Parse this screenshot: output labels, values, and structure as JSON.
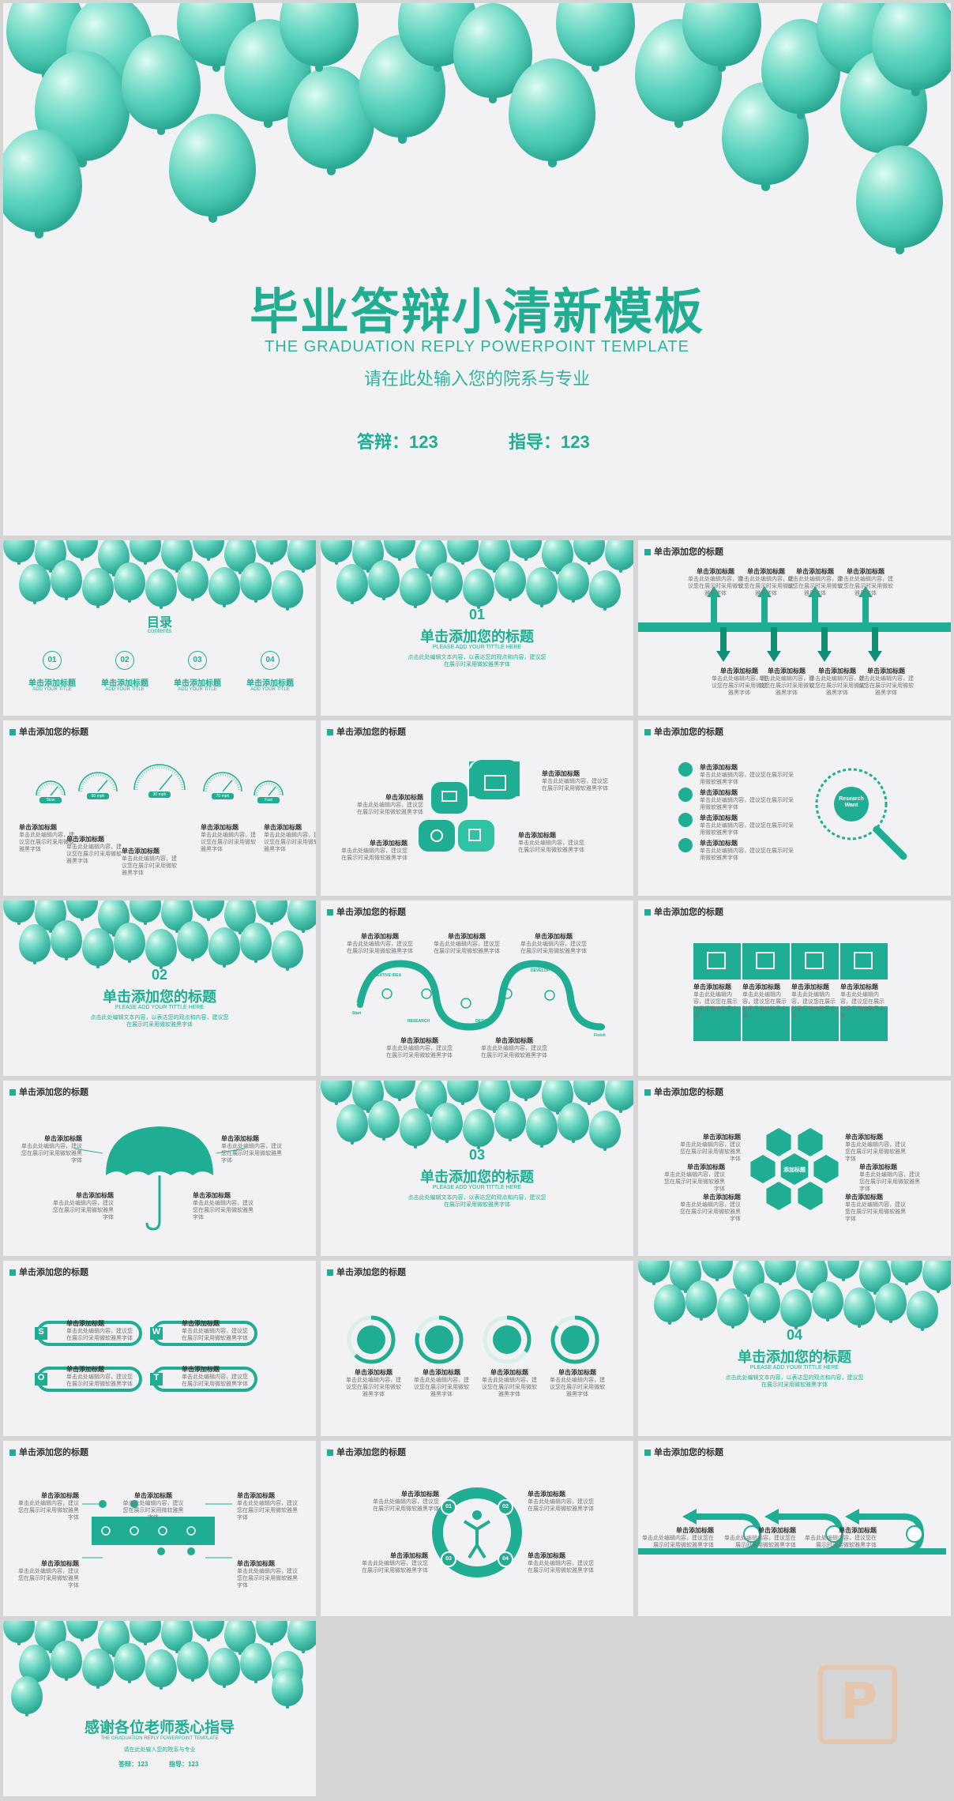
{
  "hero": {
    "title": "毕业答辩小清新模板",
    "subtitle_en": "THE GRADUATION REPLY POWERPOINT TEMPLATE",
    "subtitle_cn": "请在此处输入您的院系与专业",
    "defense_label": "答辩：123",
    "advisor_label": "指导：123"
  },
  "slide_header": "单击添加您的标题",
  "item_title": "单击添加标题",
  "item_text": "单击此处编辑内容，建议您在展示时采用微软雅黑字体",
  "toc": {
    "title": "目录",
    "subtitle": "contents",
    "items": [
      {
        "num": "01",
        "label": "单击添加标题",
        "sub": "ADD YOUR TITLE"
      },
      {
        "num": "02",
        "label": "单击添加标题",
        "sub": "ADD YOUR TITLE"
      },
      {
        "num": "03",
        "label": "单击添加标题",
        "sub": "ADD YOUR TITLE"
      },
      {
        "num": "04",
        "label": "单击添加标题",
        "sub": "ADD YOUR TITLE"
      }
    ]
  },
  "sections": [
    {
      "num": "01",
      "title": "单击添加您的标题",
      "sub": "PLEASE ADD YOUR TITTLE HERE",
      "desc": "点击此处编辑文本内容，以表达您的观点和内容，建议您在展示时采用微软雅黑字体"
    },
    {
      "num": "02",
      "title": "单击添加您的标题",
      "sub": "PLEASE ADD YOUR TITTLE HERE",
      "desc": "点击此处编辑文本内容，以表达您的观点和内容，建议您在展示时采用微软雅黑字体"
    },
    {
      "num": "03",
      "title": "单击添加您的标题",
      "sub": "PLEASE ADD YOUR TITTLE HERE",
      "desc": "点击此处编辑文本内容，以表达您的观点和内容，建议您在展示时采用微软雅黑字体"
    },
    {
      "num": "04",
      "title": "单击添加您的标题",
      "sub": "PLEASE ADD YOUR TITTLE HERE",
      "desc": "点击此处编辑文本内容，以表达您的观点和内容，建议您在展示时采用微软雅黑字体"
    }
  ],
  "gauges": [
    "Slow",
    "60 mph",
    "30 mph",
    "70 mph",
    "Fast"
  ],
  "search_word": "Research Want",
  "wave_labels": [
    "CREATIVE IDEA",
    "RESEARCH",
    "DESIGN",
    "DEVELOP",
    "Start",
    "Finish"
  ],
  "swot": [
    "S",
    "W",
    "O",
    "T"
  ],
  "hex_center": "添加标题",
  "circle_nums": [
    "01",
    "02",
    "03",
    "04"
  ],
  "thanks": {
    "title": "感谢各位老师悉心指导",
    "subtitle_en": "THE GRADUATION REPLY POWERPOINT TEMPLATE",
    "subtitle_cn": "请在此处输入您的院系与专业",
    "defense_label": "答辩：123",
    "advisor_label": "指导：123"
  },
  "colors": {
    "accent": "#1fae93",
    "background": "#f2f2f4",
    "page": "#d5d5d5"
  }
}
